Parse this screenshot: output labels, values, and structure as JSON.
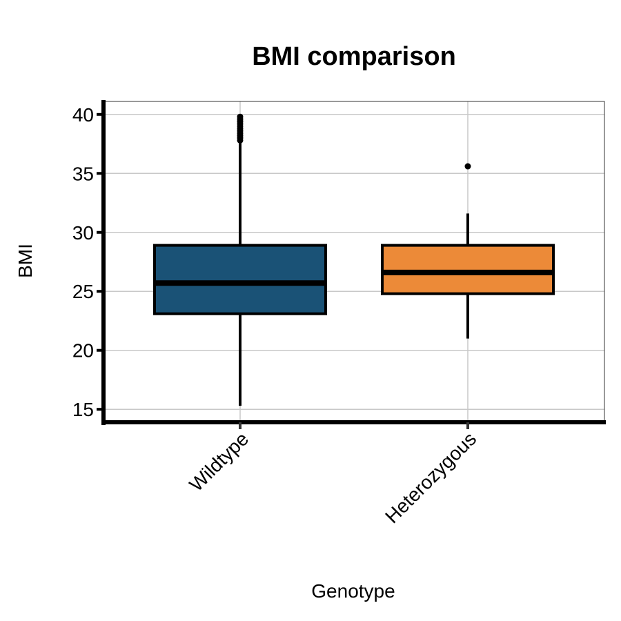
{
  "chart_data": {
    "type": "boxplot",
    "title": "BMI comparison",
    "xlabel": "Genotype",
    "ylabel": "BMI",
    "ylim": [
      13.9,
      41.1
    ],
    "yticks": [
      15,
      20,
      25,
      30,
      35,
      40
    ],
    "grid": true,
    "categories": [
      "Wildtype",
      "Heterozygous"
    ],
    "boxes": [
      {
        "category": "Wildtype",
        "color": "#1a5276",
        "whisker_low": 15.3,
        "q1": 23.1,
        "median": 25.7,
        "q3": 28.9,
        "whisker_high": 37.6,
        "outliers": [
          37.8,
          38.0,
          38.2,
          38.4,
          38.6,
          38.8,
          39.0,
          39.2,
          39.4,
          39.6,
          39.8
        ]
      },
      {
        "category": "Heterozygous",
        "color": "#ec8a38",
        "whisker_low": 21.0,
        "q1": 24.8,
        "median": 26.6,
        "q3": 28.9,
        "whisker_high": 31.6,
        "outliers": [
          35.6
        ]
      }
    ]
  }
}
